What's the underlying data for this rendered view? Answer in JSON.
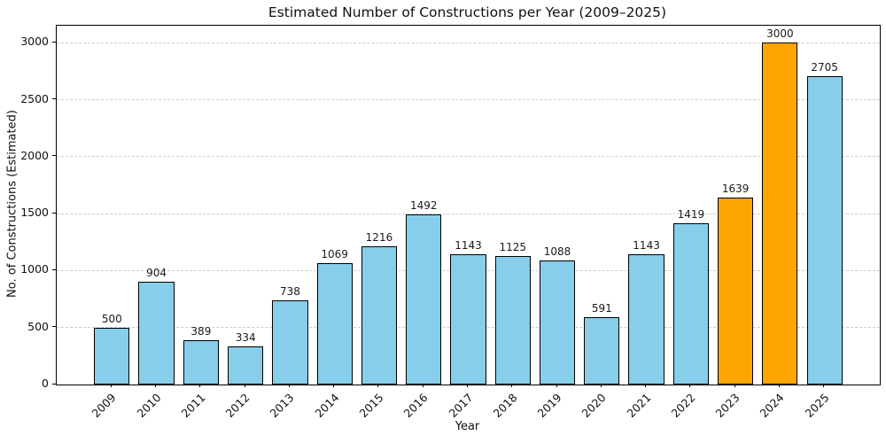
{
  "chart_data": {
    "type": "bar",
    "title": "Estimated Number of Constructions per Year (2009–2025)",
    "xlabel": "Year",
    "ylabel": "No. of Constructions (Estimated)",
    "categories": [
      "2009",
      "2010",
      "2011",
      "2012",
      "2013",
      "2014",
      "2015",
      "2016",
      "2017",
      "2018",
      "2019",
      "2020",
      "2021",
      "2022",
      "2023",
      "2024",
      "2025"
    ],
    "values": [
      500,
      904,
      389,
      334,
      738,
      1069,
      1216,
      1492,
      1143,
      1125,
      1088,
      591,
      1143,
      1419,
      1639,
      3000,
      2705
    ],
    "value_labels_shown": true,
    "highlighted_categories": [
      "2023",
      "2024"
    ],
    "colors": {
      "bar_default": "#87CEEB",
      "bar_highlight": "#FFA500",
      "bar_edge": "#000000",
      "grid": "#cccccc",
      "spine": "#000000",
      "text": "#111111"
    },
    "yticks": [
      0,
      500,
      1000,
      1500,
      2000,
      2500,
      3000
    ],
    "ylim": [
      0,
      3150
    ],
    "grid": "horizontal dashed",
    "legend": "none",
    "x_tick_rotation_deg": 45
  }
}
